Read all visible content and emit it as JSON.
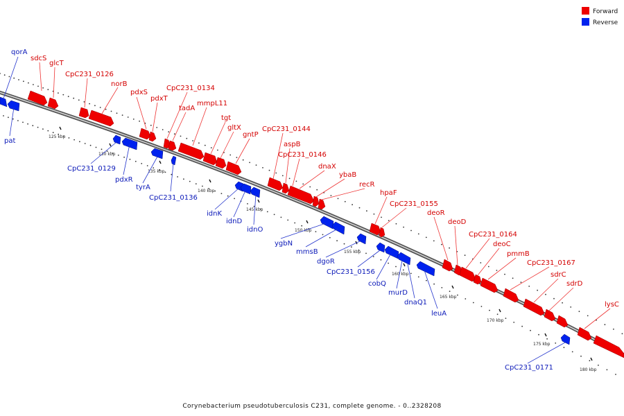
{
  "caption": "Corynebacterium pseudotuberculosis C231, complete genome. - 0..2328208",
  "legend": [
    {
      "label": "Forward",
      "color": "#ee0000"
    },
    {
      "label": "Reverse",
      "color": "#0022ee"
    }
  ],
  "ticks": [
    "125 kbp",
    "130 kbp",
    "135 kbp",
    "140 kbp",
    "145 kbp",
    "150 kbp",
    "155 kbp",
    "160 kbp",
    "165 kbp",
    "170 kbp",
    "175 kbp",
    "180 kbp"
  ],
  "forward_genes": [
    "sdcS",
    "glcT",
    "CpC231_0126",
    "norB",
    "pdxS",
    "pdxT",
    "CpC231_0134",
    "tadA",
    "mmpL11",
    "tgt",
    "gltX",
    "gntP",
    "CpC231_0144",
    "aspB",
    "CpC231_0146",
    "dnaX",
    "ybaB",
    "recR",
    "hpaF",
    "CpC231_0155",
    "deoR",
    "deoD",
    "CpC231_0164",
    "deoC",
    "pmmB",
    "CpC231_0167",
    "sdrC",
    "sdrD",
    "lysC"
  ],
  "reverse_genes": [
    "qorA",
    "pat",
    "CpC231_0129",
    "pdxR",
    "tyrA",
    "CpC231_0136",
    "idnK",
    "idnD",
    "idnO",
    "ygbN",
    "mmsB",
    "dgoR",
    "CpC231_0156",
    "cobQ",
    "murD",
    "dnaQ1",
    "leuA",
    "CpC231_0171"
  ]
}
